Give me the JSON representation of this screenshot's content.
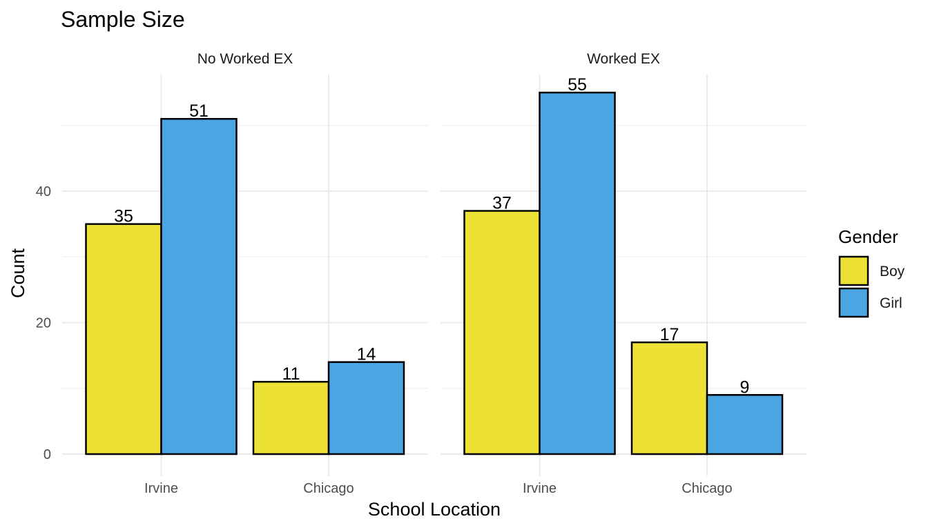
{
  "chart_data": {
    "type": "bar",
    "title": "Sample Size",
    "xlabel": "School Location",
    "ylabel": "Count",
    "ylim": [
      0,
      57.75
    ],
    "y_ticks": [
      0,
      20,
      40
    ],
    "categories": [
      "Irvine",
      "Chicago"
    ],
    "facets": [
      {
        "label": "No Worked EX",
        "series": [
          {
            "name": "Boy",
            "values": [
              35,
              11
            ]
          },
          {
            "name": "Girl",
            "values": [
              51,
              14
            ]
          }
        ]
      },
      {
        "label": "Worked EX",
        "series": [
          {
            "name": "Boy",
            "values": [
              37,
              17
            ]
          },
          {
            "name": "Girl",
            "values": [
              55,
              9
            ]
          }
        ]
      }
    ],
    "legend": {
      "title": "Gender",
      "position": "right",
      "entries": [
        {
          "name": "Boy",
          "color": "#ECE134"
        },
        {
          "name": "Girl",
          "color": "#4BA5E2"
        }
      ]
    },
    "grid": true,
    "bar_outline_color": "#000000",
    "grid_color": "#ebebeb"
  }
}
